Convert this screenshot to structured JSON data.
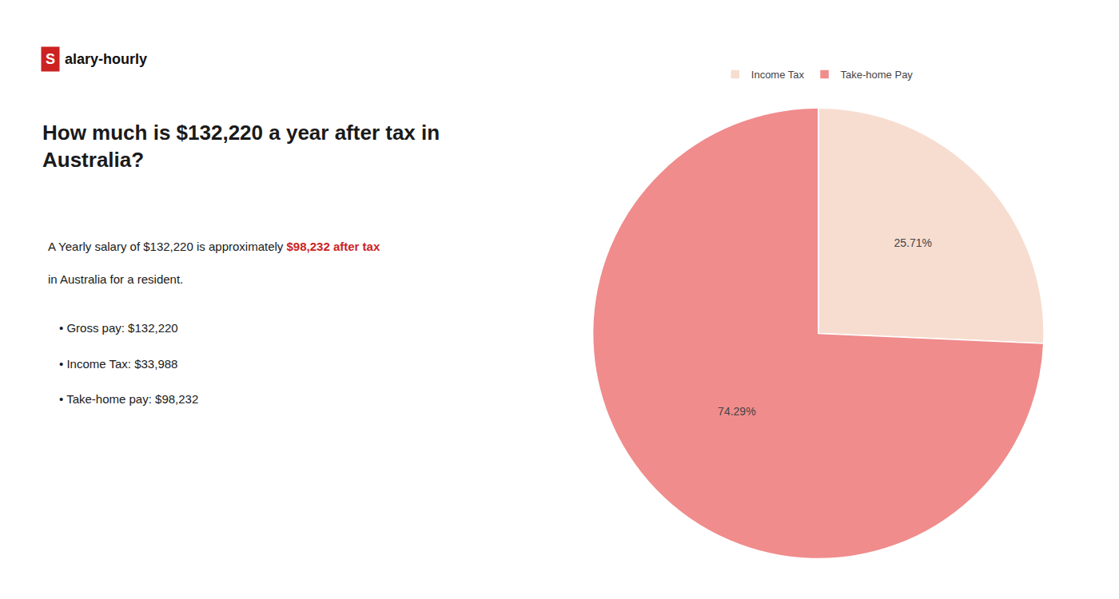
{
  "chart_data": {
    "type": "pie",
    "title": "How much is $132,220 a year after tax in\nAustralia?",
    "categories": [
      "Income Tax",
      "Take-home Pay"
    ],
    "values": [
      25.71,
      74.29
    ],
    "value_labels": [
      "25.71%",
      "74.29%"
    ],
    "colors": [
      "#f7ddd0",
      "#f08c8c"
    ],
    "data_labels": true,
    "legend": "top",
    "annotations": [
      {
        "text": "S",
        "color": "#cc2222"
      },
      {
        "text": "alary-hourly"
      },
      {
        "text": "A Yearly salary of $132,220 is approximately "
      },
      {
        "text": "$98,232 after tax",
        "color": "#cc2222"
      },
      {
        "text": "in Australia for a resident."
      },
      {
        "text": "• Gross pay: $132,220"
      },
      {
        "text": "• Income Tax: $33,988"
      },
      {
        "text": "• Take-home pay: $98,232"
      }
    ]
  }
}
